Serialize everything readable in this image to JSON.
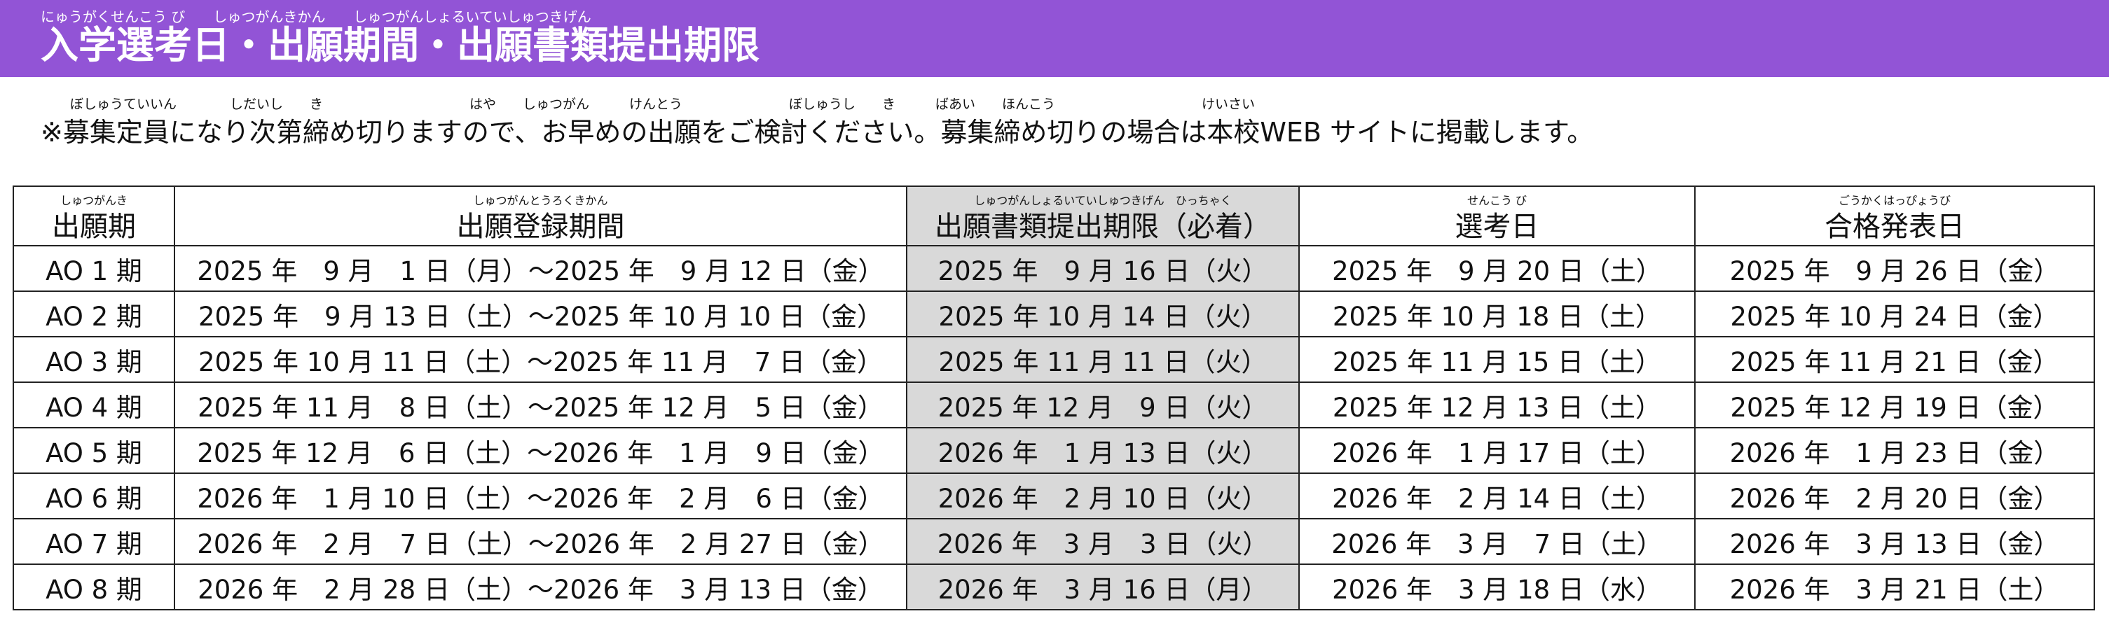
{
  "header": {
    "title": "入学選考日・出願期間・出願書類提出期限",
    "title_ruby": "にゅうがくせんこう び　　しゅつがんきかん　　しゅつがんしょるいていしゅつきげん",
    "background": "#9254d6"
  },
  "notice": {
    "text": "※募集定員になり次第締め切りますので、お早めの出願をご検討ください。募集締め切りの場合は本校WEB サイトに掲載します。",
    "ruby": "ぼしゅうていいん　　　　しだいし　　き　　　　　　　　　　　はや　　しゅつがん　　　けんとう　　　　　　　　ぼしゅうし　　き　　　ばあい　　ほんこう　　　　　　　　　　　けいさい"
  },
  "table": {
    "headers": [
      {
        "label": "出願期",
        "ruby": "しゅつがんき"
      },
      {
        "label": "出願登録期間",
        "ruby": "しゅつがんとうろくきかん"
      },
      {
        "label": "出願書類提出期限（必着）",
        "ruby": "しゅつがんしょるいていしゅつきげん　ひっちゃく"
      },
      {
        "label": "選考日",
        "ruby": "せんこう び"
      },
      {
        "label": "合格発表日",
        "ruby": "ごうかくはっぴょうび"
      }
    ],
    "rows": [
      {
        "period": "AO 1 期",
        "registration": "2025 年　9 月　1 日（月）～2025 年　9 月 12 日（金）",
        "deadline": "2025 年　9 月 16 日（火）",
        "selection": "2025 年　9 月 20 日（土）",
        "announcement": "2025 年　9 月 26 日（金）"
      },
      {
        "period": "AO 2 期",
        "registration": "2025 年　9 月 13 日（土）～2025 年 10 月 10 日（金）",
        "deadline": "2025 年 10 月 14 日（火）",
        "selection": "2025 年 10 月 18 日（土）",
        "announcement": "2025 年 10 月 24 日（金）"
      },
      {
        "period": "AO 3 期",
        "registration": "2025 年 10 月 11 日（土）～2025 年 11 月　7 日（金）",
        "deadline": "2025 年 11 月 11 日（火）",
        "selection": "2025 年 11 月 15 日（土）",
        "announcement": "2025 年 11 月 21 日（金）"
      },
      {
        "period": "AO 4 期",
        "registration": "2025 年 11 月　8 日（土）～2025 年 12 月　5 日（金）",
        "deadline": "2025 年 12 月　9 日（火）",
        "selection": "2025 年 12 月 13 日（土）",
        "announcement": "2025 年 12 月 19 日（金）"
      },
      {
        "period": "AO 5 期",
        "registration": "2025 年 12 月　6 日（土）～2026 年　1 月　9 日（金）",
        "deadline": "2026 年　1 月 13 日（火）",
        "selection": "2026 年　1 月 17 日（土）",
        "announcement": "2026 年　1 月 23 日（金）"
      },
      {
        "period": "AO 6 期",
        "registration": "2026 年　1 月 10 日（土）～2026 年　2 月　6 日（金）",
        "deadline": "2026 年　2 月 10 日（火）",
        "selection": "2026 年　2 月 14 日（土）",
        "announcement": "2026 年　2 月 20 日（金）"
      },
      {
        "period": "AO 7 期",
        "registration": "2026 年　2 月　7 日（土）～2026 年　2 月 27 日（金）",
        "deadline": "2026 年　3 月　3 日（火）",
        "selection": "2026 年　3 月　7 日（土）",
        "announcement": "2026 年　3 月 13 日（金）"
      },
      {
        "period": "AO 8 期",
        "registration": "2026 年　2 月 28 日（土）～2026 年　3 月 13 日（金）",
        "deadline": "2026 年　3 月 16 日（月）",
        "selection": "2026 年　3 月 18 日（水）",
        "announcement": "2026 年　3 月 21 日（土）"
      }
    ],
    "deadline_column_shade": "#d9d9d9"
  }
}
